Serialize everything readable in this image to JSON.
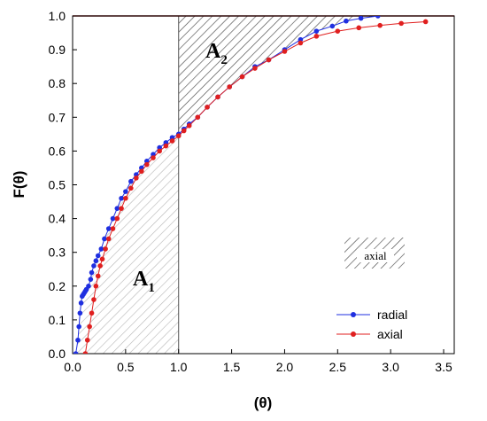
{
  "chart_data": {
    "type": "line",
    "xlabel": "(θ)",
    "ylabel": "F(θ)",
    "xlim": [
      0.0,
      3.6
    ],
    "ylim": [
      0.0,
      1.0
    ],
    "xticks": [
      "0.0",
      "0.5",
      "1.0",
      "1.5",
      "2.0",
      "2.5",
      "3.0",
      "3.5"
    ],
    "yticks": [
      "0.0",
      "0.1",
      "0.2",
      "0.3",
      "0.4",
      "0.5",
      "0.6",
      "0.7",
      "0.8",
      "0.9",
      "1.0"
    ],
    "reference_line": {
      "y": 1.0,
      "color": "#8b1a1a"
    },
    "vertical_line": {
      "x": 1.0
    },
    "annotations": [
      {
        "main": "A",
        "sub": "1",
        "region": "hatched area between the curve and θ = 1, below the curve"
      },
      {
        "main": "A",
        "sub": "2",
        "region": "hatched area between the curve and F = 1, right of θ = 1"
      }
    ],
    "inset_text": "axial",
    "legend_position": "bottom-right",
    "series": [
      {
        "name": "radial",
        "color": "#1f2fe0",
        "x": [
          0.03,
          0.05,
          0.06,
          0.07,
          0.08,
          0.09,
          0.1,
          0.11,
          0.12,
          0.13,
          0.15,
          0.17,
          0.18,
          0.2,
          0.22,
          0.24,
          0.27,
          0.3,
          0.34,
          0.38,
          0.42,
          0.46,
          0.5,
          0.55,
          0.6,
          0.65,
          0.7,
          0.76,
          0.82,
          0.88,
          0.94,
          1.0,
          1.05,
          1.1,
          1.18,
          1.27,
          1.37,
          1.48,
          1.6,
          1.72,
          1.85,
          2.0,
          2.15,
          2.3,
          2.45,
          2.58,
          2.72,
          2.88
        ],
        "y": [
          0.0,
          0.04,
          0.08,
          0.12,
          0.15,
          0.17,
          0.175,
          0.18,
          0.185,
          0.19,
          0.2,
          0.22,
          0.24,
          0.26,
          0.275,
          0.29,
          0.31,
          0.34,
          0.37,
          0.4,
          0.43,
          0.46,
          0.48,
          0.51,
          0.53,
          0.55,
          0.57,
          0.59,
          0.61,
          0.625,
          0.64,
          0.65,
          0.665,
          0.68,
          0.7,
          0.73,
          0.76,
          0.79,
          0.82,
          0.85,
          0.87,
          0.9,
          0.93,
          0.955,
          0.97,
          0.985,
          0.993,
          1.0
        ]
      },
      {
        "name": "axial",
        "color": "#e01f1f",
        "x": [
          0.12,
          0.14,
          0.16,
          0.18,
          0.2,
          0.22,
          0.24,
          0.26,
          0.28,
          0.31,
          0.34,
          0.38,
          0.42,
          0.46,
          0.5,
          0.55,
          0.6,
          0.65,
          0.7,
          0.76,
          0.82,
          0.88,
          0.94,
          1.0,
          1.05,
          1.1,
          1.18,
          1.27,
          1.37,
          1.48,
          1.6,
          1.72,
          1.85,
          2.0,
          2.15,
          2.3,
          2.5,
          2.7,
          2.9,
          3.1,
          3.33
        ],
        "y": [
          0.0,
          0.04,
          0.08,
          0.12,
          0.16,
          0.2,
          0.23,
          0.26,
          0.28,
          0.31,
          0.34,
          0.37,
          0.4,
          0.43,
          0.46,
          0.49,
          0.52,
          0.54,
          0.56,
          0.58,
          0.6,
          0.615,
          0.63,
          0.645,
          0.66,
          0.675,
          0.7,
          0.73,
          0.76,
          0.79,
          0.82,
          0.845,
          0.87,
          0.895,
          0.92,
          0.94,
          0.955,
          0.965,
          0.972,
          0.978,
          0.983
        ]
      }
    ]
  }
}
